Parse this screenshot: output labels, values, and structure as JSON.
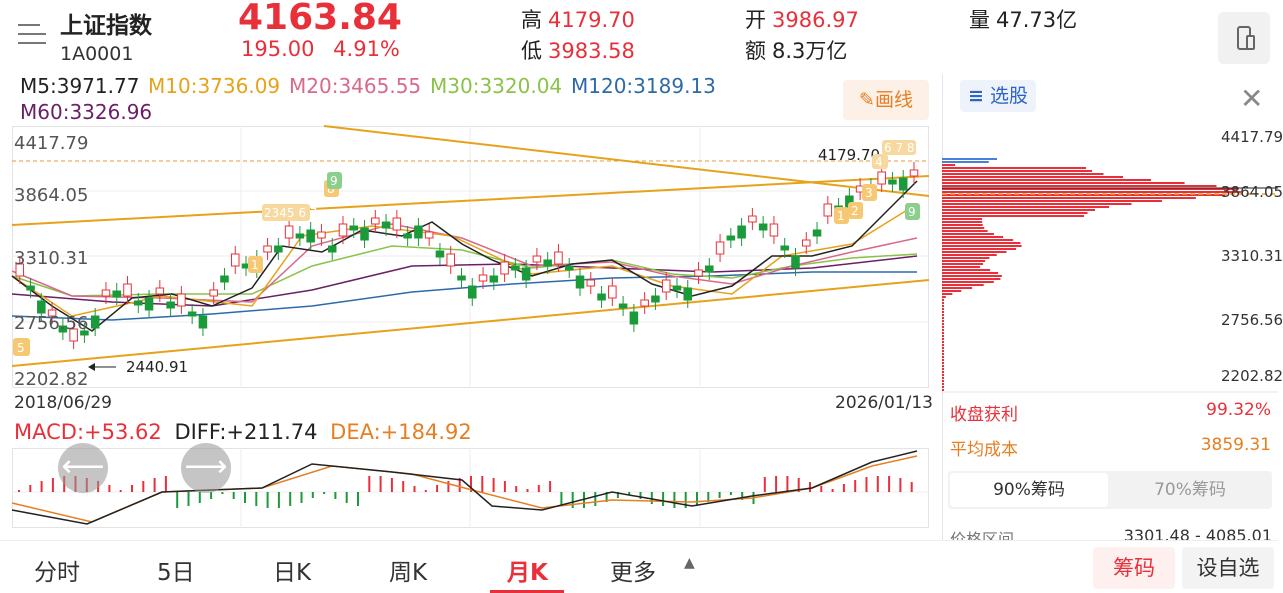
{
  "header": {
    "title": "上证指数",
    "code": "1A0001",
    "price": "4163.84",
    "change": "195.00",
    "change_pct": "4.91%",
    "high_label": "高",
    "high": "4179.70",
    "low_label": "低",
    "low": "3983.58",
    "open_label": "开",
    "open": "3986.97",
    "amount_label": "额",
    "amount": "8.3万亿",
    "volume_label": "量",
    "volume": "47.73亿"
  },
  "ma": {
    "m5": "M5:3971.77",
    "m10": "M10:3736.09",
    "m20": "M20:3465.55",
    "m30": "M30:3320.04",
    "m120": "M120:3189.13",
    "m60": "M60:3326.96"
  },
  "draw_button": "画线",
  "kline": {
    "y_labels": [
      "4417.79",
      "3864.05",
      "3310.31",
      "2756.56",
      "2202.82"
    ],
    "high_marker": "4179.70",
    "low_marker": "2440.91",
    "start_date": "2018/06/29",
    "end_date": "2026/01/13"
  },
  "macd": {
    "macd": "MACD:+53.62",
    "diff": "DIFF:+211.74",
    "dea": "DEA:+184.92"
  },
  "chips": {
    "tab_label": "选股",
    "y_labels": [
      "4417.79",
      "3864.05",
      "3310.31",
      "2756.56",
      "2202.82"
    ],
    "profit_label": "收盘获利",
    "profit_value": "99.32%",
    "avg_cost_label": "平均成本",
    "avg_cost_value": "3859.31",
    "tab_90": "90%筹码",
    "tab_70": "70%筹码",
    "range_label": "价格区间",
    "range_value": "3301.48 - 4085.01"
  },
  "bottom_tabs": {
    "intraday": "分时",
    "five_day": "5日",
    "daily": "日K",
    "weekly": "周K",
    "monthly": "月K",
    "more": "更多",
    "chips_btn": "筹码",
    "watch_btn": "设自选"
  },
  "colors": {
    "up": "#e8303a",
    "down": "#1b9a3a",
    "m5": "#222222",
    "m10": "#e6a21a",
    "m20": "#d9698b",
    "m30": "#8ac24a",
    "m60": "#6a1f66",
    "m120": "#2d6aa8"
  },
  "icons": {
    "menu": "menu-lines-icon",
    "device": "device-switch-icon",
    "pencil": "pencil-icon",
    "list": "list-icon",
    "close": "close-icon",
    "left": "arrow-left-icon",
    "right": "arrow-right-icon",
    "caret": "caret-up-icon"
  }
}
